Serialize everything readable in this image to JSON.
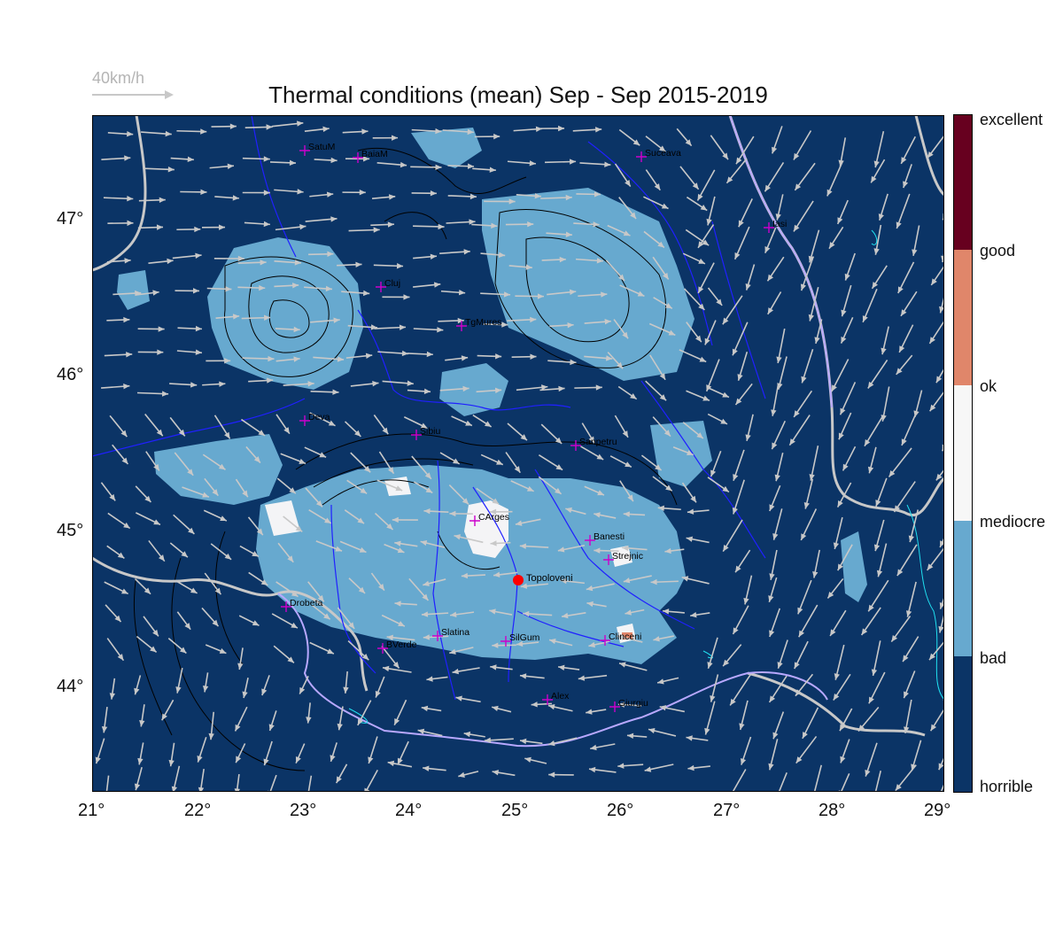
{
  "title": "Thermal conditions (mean) Sep - Sep  2015-2019",
  "scale_label": "40km/h",
  "x_ticks": [
    "21°",
    "22°",
    "23°",
    "24°",
    "25°",
    "26°",
    "27°",
    "28°",
    "29°"
  ],
  "y_ticks": [
    "47°",
    "46°",
    "45°",
    "44°"
  ],
  "legend": {
    "labels": [
      "excellent",
      "good",
      "ok",
      "mediocre",
      "bad",
      "horrible"
    ],
    "colors": [
      "#67001f",
      "#e0866a",
      "#f7f7f7",
      "#67a9cf",
      "#0b3466"
    ]
  },
  "site": {
    "name": "Topoloveni",
    "color": "#ff0000"
  },
  "places": [
    {
      "name": "SatuM"
    },
    {
      "name": "BaiaM"
    },
    {
      "name": "Suceava"
    },
    {
      "name": "Iasi"
    },
    {
      "name": "Cluj"
    },
    {
      "name": "TgMures"
    },
    {
      "name": "Deva"
    },
    {
      "name": "Sibiu"
    },
    {
      "name": "Sanpetru"
    },
    {
      "name": "CArges"
    },
    {
      "name": "Banesti"
    },
    {
      "name": "Strejnic"
    },
    {
      "name": "Drobeta"
    },
    {
      "name": "Slatina"
    },
    {
      "name": "SilGum"
    },
    {
      "name": "Clinceni"
    },
    {
      "name": "BVerde"
    },
    {
      "name": "Alex"
    },
    {
      "name": "Giurgiu"
    }
  ],
  "colors": {
    "background": "#0b3466",
    "relief": "#67a9cf",
    "mediocre": "#f4f4f6",
    "ok_patch": "#e0866a",
    "wind_arrows": "#c8c8c8",
    "rivers": "#2020ff",
    "borders": "#c8c8c8",
    "markers": "#cc00cc"
  }
}
